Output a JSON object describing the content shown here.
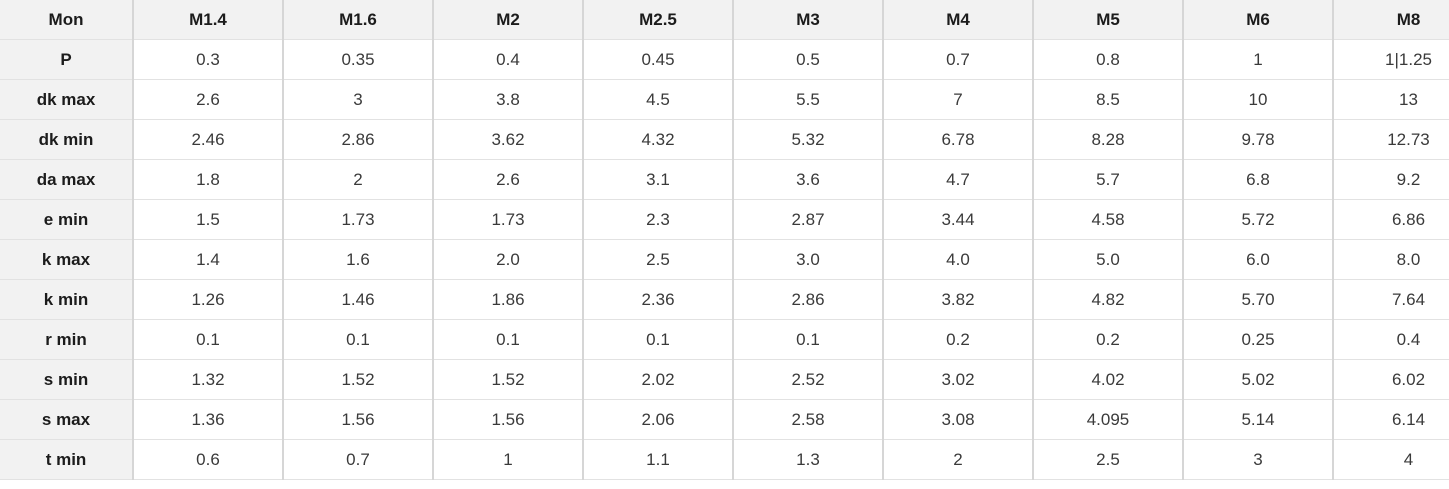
{
  "table": {
    "corner_label": "Mon",
    "columns": [
      "M1.4",
      "M1.6",
      "M2",
      "M2.5",
      "M3",
      "M4",
      "M5",
      "M6",
      "M8"
    ],
    "rows": [
      {
        "label": "P",
        "values": [
          "0.3",
          "0.35",
          "0.4",
          "0.45",
          "0.5",
          "0.7",
          "0.8",
          "1",
          "1|1.25"
        ]
      },
      {
        "label": "dk max",
        "values": [
          "2.6",
          "3",
          "3.8",
          "4.5",
          "5.5",
          "7",
          "8.5",
          "10",
          "13"
        ]
      },
      {
        "label": "dk min",
        "values": [
          "2.46",
          "2.86",
          "3.62",
          "4.32",
          "5.32",
          "6.78",
          "8.28",
          "9.78",
          "12.73"
        ]
      },
      {
        "label": "da max",
        "values": [
          "1.8",
          "2",
          "2.6",
          "3.1",
          "3.6",
          "4.7",
          "5.7",
          "6.8",
          "9.2"
        ]
      },
      {
        "label": "e min",
        "values": [
          "1.5",
          "1.73",
          "1.73",
          "2.3",
          "2.87",
          "3.44",
          "4.58",
          "5.72",
          "6.86"
        ]
      },
      {
        "label": "k max",
        "values": [
          "1.4",
          "1.6",
          "2.0",
          "2.5",
          "3.0",
          "4.0",
          "5.0",
          "6.0",
          "8.0"
        ]
      },
      {
        "label": "k min",
        "values": [
          "1.26",
          "1.46",
          "1.86",
          "2.36",
          "2.86",
          "3.82",
          "4.82",
          "5.70",
          "7.64"
        ]
      },
      {
        "label": "r min",
        "values": [
          "0.1",
          "0.1",
          "0.1",
          "0.1",
          "0.1",
          "0.2",
          "0.2",
          "0.25",
          "0.4"
        ]
      },
      {
        "label": "s min",
        "values": [
          "1.32",
          "1.52",
          "1.52",
          "2.02",
          "2.52",
          "3.02",
          "4.02",
          "5.02",
          "6.02"
        ]
      },
      {
        "label": "s max",
        "values": [
          "1.36",
          "1.56",
          "1.56",
          "2.06",
          "2.58",
          "3.08",
          "4.095",
          "5.14",
          "6.14"
        ]
      },
      {
        "label": "t min",
        "values": [
          "0.6",
          "0.7",
          "1",
          "1.1",
          "1.3",
          "2",
          "2.5",
          "3",
          "4"
        ]
      }
    ],
    "layout": {
      "label_col_width": 133,
      "data_col_width": 150
    },
    "colors": {
      "header_bg": "#f2f2f2",
      "rowlabel_bg": "#f2f2f2",
      "cell_bg": "#ffffff",
      "border_vertical": "#d6d6d6",
      "border_horizontal": "#e2e2e2",
      "header_text": "#1c1c1c",
      "value_text": "#3a3a3a"
    }
  },
  "chart_data": {
    "type": "table",
    "title": "",
    "corner_label": "Mon",
    "columns": [
      "M1.4",
      "M1.6",
      "M2",
      "M2.5",
      "M3",
      "M4",
      "M5",
      "M6",
      "M8"
    ],
    "row_labels": [
      "P",
      "dk max",
      "dk min",
      "da max",
      "e min",
      "k max",
      "k min",
      "r min",
      "s min",
      "s max",
      "t min"
    ],
    "cells": [
      [
        "0.3",
        "0.35",
        "0.4",
        "0.45",
        "0.5",
        "0.7",
        "0.8",
        "1",
        "1|1.25"
      ],
      [
        "2.6",
        "3",
        "3.8",
        "4.5",
        "5.5",
        "7",
        "8.5",
        "10",
        "13"
      ],
      [
        "2.46",
        "2.86",
        "3.62",
        "4.32",
        "5.32",
        "6.78",
        "8.28",
        "9.78",
        "12.73"
      ],
      [
        "1.8",
        "2",
        "2.6",
        "3.1",
        "3.6",
        "4.7",
        "5.7",
        "6.8",
        "9.2"
      ],
      [
        "1.5",
        "1.73",
        "1.73",
        "2.3",
        "2.87",
        "3.44",
        "4.58",
        "5.72",
        "6.86"
      ],
      [
        "1.4",
        "1.6",
        "2.0",
        "2.5",
        "3.0",
        "4.0",
        "5.0",
        "6.0",
        "8.0"
      ],
      [
        "1.26",
        "1.46",
        "1.86",
        "2.36",
        "2.86",
        "3.82",
        "4.82",
        "5.70",
        "7.64"
      ],
      [
        "0.1",
        "0.1",
        "0.1",
        "0.1",
        "0.1",
        "0.2",
        "0.2",
        "0.25",
        "0.4"
      ],
      [
        "1.32",
        "1.52",
        "1.52",
        "2.02",
        "2.52",
        "3.02",
        "4.02",
        "5.02",
        "6.02"
      ],
      [
        "1.36",
        "1.56",
        "1.56",
        "2.06",
        "2.58",
        "3.08",
        "4.095",
        "5.14",
        "6.14"
      ],
      [
        "0.6",
        "0.7",
        "1",
        "1.1",
        "1.3",
        "2",
        "2.5",
        "3",
        "4"
      ]
    ]
  }
}
